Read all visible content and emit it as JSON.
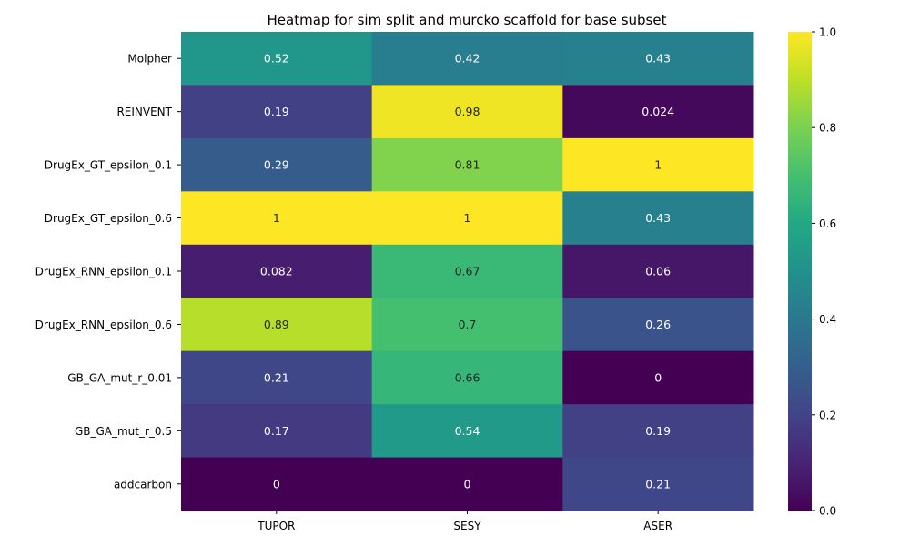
{
  "chart_data": {
    "type": "heatmap",
    "title": "Heatmap for sim split and murcko scaffold for base subset",
    "xlabel": "",
    "ylabel": "",
    "columns": [
      "TUPOR",
      "SESY",
      "ASER"
    ],
    "rows": [
      "Molpher",
      "REINVENT",
      "DrugEx_GT_epsilon_0.1",
      "DrugEx_GT_epsilon_0.6",
      "DrugEx_RNN_epsilon_0.1",
      "DrugEx_RNN_epsilon_0.6",
      "GB_GA_mut_r_0.01",
      "GB_GA_mut_r_0.5",
      "addcarbon"
    ],
    "values": [
      [
        0.52,
        0.42,
        0.43
      ],
      [
        0.19,
        0.98,
        0.024
      ],
      [
        0.29,
        0.81,
        1
      ],
      [
        1,
        1,
        0.43
      ],
      [
        0.082,
        0.67,
        0.06
      ],
      [
        0.89,
        0.7,
        0.26
      ],
      [
        0.21,
        0.66,
        0
      ],
      [
        0.17,
        0.54,
        0.19
      ],
      [
        0,
        0,
        0.21
      ]
    ],
    "annotations": [
      [
        "0.52",
        "0.42",
        "0.43"
      ],
      [
        "0.19",
        "0.98",
        "0.024"
      ],
      [
        "0.29",
        "0.81",
        "1"
      ],
      [
        "1",
        "1",
        "0.43"
      ],
      [
        "0.082",
        "0.67",
        "0.06"
      ],
      [
        "0.89",
        "0.7",
        "0.26"
      ],
      [
        "0.21",
        "0.66",
        "0"
      ],
      [
        "0.17",
        "0.54",
        "0.19"
      ],
      [
        "0",
        "0",
        "0.21"
      ]
    ],
    "colorbar": {
      "colormap": "viridis",
      "range": [
        0,
        1
      ],
      "ticks": [
        "0.0",
        "0.2",
        "0.4",
        "0.6",
        "0.8",
        "1.0"
      ]
    }
  }
}
